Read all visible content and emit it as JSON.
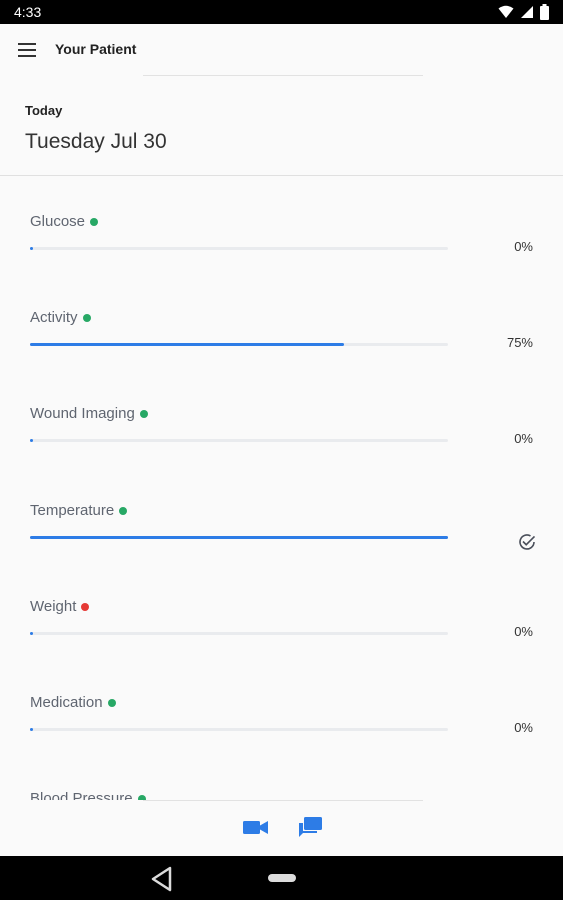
{
  "status_bar": {
    "time": "4:33",
    "icons": [
      "wifi-icon",
      "cell-signal-icon",
      "battery-icon"
    ]
  },
  "app_bar": {
    "title": "Your Patient",
    "menu_icon": "menu-icon"
  },
  "header": {
    "today_label": "Today",
    "date": "Tuesday Jul 30"
  },
  "metrics": [
    {
      "name": "Glucose",
      "status_color": "#27a865",
      "progress": 0,
      "value": "0%"
    },
    {
      "name": "Activity",
      "status_color": "#27a865",
      "progress": 0.75,
      "value": "75%"
    },
    {
      "name": "Wound Imaging",
      "status_color": "#27a865",
      "progress": 0,
      "value": "0%"
    },
    {
      "name": "Temperature",
      "status_color": "#27a865",
      "progress": 1.0,
      "value": "",
      "completed_icon": "check-circle-icon"
    },
    {
      "name": "Weight",
      "status_color": "#e53935",
      "progress": 0,
      "value": "0%"
    },
    {
      "name": "Medication",
      "status_color": "#27a865",
      "progress": 0,
      "value": "0%"
    },
    {
      "name": "Blood Pressure",
      "status_color": "#27a865"
    }
  ],
  "bottom_actions": [
    {
      "icon": "video-call-icon"
    },
    {
      "icon": "chat-icon"
    }
  ],
  "colors": {
    "accent": "#2d7ce6",
    "status_ok": "#27a865",
    "status_alert": "#e53935"
  }
}
